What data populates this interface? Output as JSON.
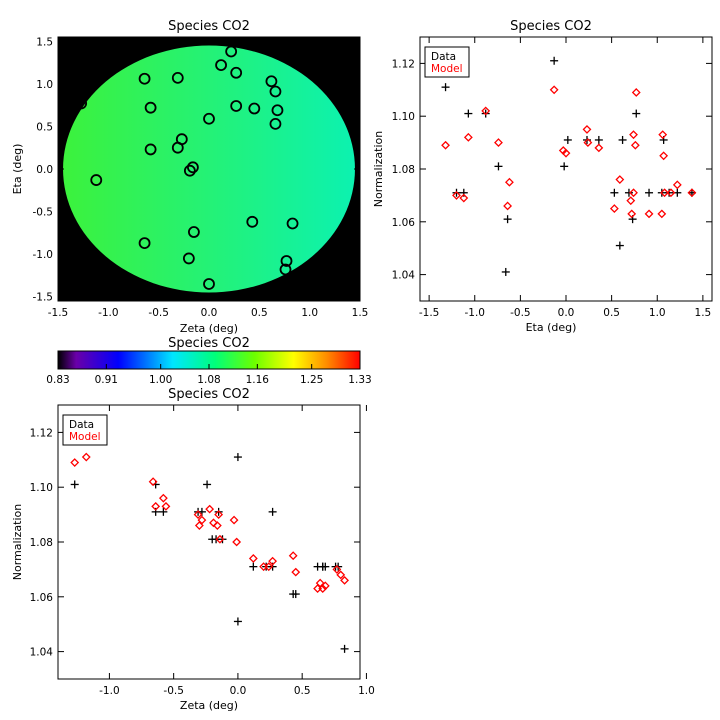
{
  "panels": {
    "map": {
      "title": "Species CO2",
      "xlabel": "Zeta (deg)",
      "ylabel": "Eta (deg)",
      "xticks": [
        "-1.5",
        "-1.0",
        "-0.5",
        "0.0",
        "0.5",
        "1.0",
        "1.5"
      ],
      "yticks": [
        "-1.5",
        "-1.0",
        "-0.5",
        "0.0",
        "0.5",
        "1.0",
        "1.5"
      ]
    },
    "eta": {
      "title": "Species CO2",
      "xlabel": "Eta (deg)",
      "ylabel": "Normalization",
      "xticks": [
        "-1.5",
        "-1.0",
        "-0.5",
        "0.0",
        "0.5",
        "1.0",
        "1.5"
      ],
      "yticks": [
        "1.04",
        "1.06",
        "1.08",
        "1.10",
        "1.12"
      ],
      "legend": {
        "data": "Data",
        "model": "Model"
      }
    },
    "colorbar": {
      "title": "Species CO2",
      "ticks": [
        "0.83",
        "0.91",
        "1.00",
        "1.08",
        "1.16",
        "1.25",
        "1.33"
      ]
    },
    "zeta": {
      "title": "Species CO2",
      "xlabel": "Zeta (deg)",
      "ylabel": "Normalization",
      "xticks": [
        "-1.0",
        "-0.5",
        "0.0",
        "0.5",
        "1.0"
      ],
      "yticks": [
        "1.04",
        "1.06",
        "1.08",
        "1.10",
        "1.12"
      ],
      "legend": {
        "data": "Data",
        "model": "Model"
      }
    }
  },
  "colors": {
    "data": "#000000",
    "model": "#ff0000",
    "map_background": "#000000",
    "disk_low": "#3cf23c",
    "disk_high": "#0cf2b0"
  },
  "chart_data": [
    {
      "type": "scatter",
      "title": "Species CO2",
      "xlabel": "Zeta (deg)",
      "ylabel": "Eta (deg)",
      "xlim": [
        -1.5,
        1.5
      ],
      "ylim": [
        -1.55,
        1.55
      ],
      "disk_radius": 1.45,
      "series": [
        {
          "points": [
            [
              -1.27,
              0.77
            ],
            [
              -1.12,
              -0.13
            ],
            [
              -0.64,
              1.06
            ],
            [
              -0.58,
              0.72
            ],
            [
              -0.58,
              0.23
            ],
            [
              -0.64,
              -0.87
            ],
            [
              -0.31,
              1.07
            ],
            [
              -0.31,
              0.25
            ],
            [
              -0.27,
              0.35
            ],
            [
              -0.19,
              -0.02
            ],
            [
              -0.16,
              0.02
            ],
            [
              -0.15,
              -0.74
            ],
            [
              -0.2,
              -1.05
            ],
            [
              0.0,
              0.59
            ],
            [
              0.0,
              -1.35
            ],
            [
              0.12,
              1.22
            ],
            [
              0.22,
              1.38
            ],
            [
              0.27,
              1.13
            ],
            [
              0.27,
              0.74
            ],
            [
              0.45,
              0.71
            ],
            [
              0.43,
              -0.62
            ],
            [
              0.62,
              1.03
            ],
            [
              0.66,
              0.91
            ],
            [
              0.68,
              0.69
            ],
            [
              0.66,
              0.53
            ],
            [
              0.77,
              -1.08
            ],
            [
              0.76,
              -1.18
            ],
            [
              0.83,
              -0.64
            ]
          ]
        }
      ]
    },
    {
      "type": "scatter",
      "title": "Species CO2",
      "xlabel": "Eta (deg)",
      "ylabel": "Normalization",
      "xlim": [
        -1.6,
        1.6
      ],
      "ylim": [
        1.03,
        1.13
      ],
      "series": [
        {
          "name": "Data",
          "points": [
            [
              -1.32,
              1.111
            ],
            [
              -1.2,
              1.071
            ],
            [
              -1.12,
              1.071
            ],
            [
              -1.07,
              1.101
            ],
            [
              -0.88,
              1.101
            ],
            [
              -0.74,
              1.081
            ],
            [
              -0.64,
              1.061
            ],
            [
              -0.66,
              1.041
            ],
            [
              -0.13,
              1.121
            ],
            [
              -0.02,
              1.081
            ],
            [
              0.02,
              1.091
            ],
            [
              0.23,
              1.091
            ],
            [
              0.36,
              1.091
            ],
            [
              0.53,
              1.071
            ],
            [
              0.59,
              1.051
            ],
            [
              0.62,
              1.091
            ],
            [
              0.69,
              1.071
            ],
            [
              0.73,
              1.061
            ],
            [
              0.77,
              1.101
            ],
            [
              0.91,
              1.071
            ],
            [
              1.05,
              1.071
            ],
            [
              1.07,
              1.091
            ],
            [
              1.13,
              1.071
            ],
            [
              1.22,
              1.071
            ],
            [
              1.38,
              1.071
            ]
          ]
        },
        {
          "name": "Model",
          "points": [
            [
              -1.32,
              1.089
            ],
            [
              -1.2,
              1.07
            ],
            [
              -1.12,
              1.069
            ],
            [
              -1.07,
              1.092
            ],
            [
              -0.88,
              1.102
            ],
            [
              -0.74,
              1.09
            ],
            [
              -0.64,
              1.066
            ],
            [
              -0.62,
              1.075
            ],
            [
              -0.13,
              1.11
            ],
            [
              -0.03,
              1.087
            ],
            [
              0.0,
              1.086
            ],
            [
              0.23,
              1.095
            ],
            [
              0.24,
              1.09
            ],
            [
              0.36,
              1.088
            ],
            [
              0.53,
              1.065
            ],
            [
              0.59,
              1.076
            ],
            [
              0.72,
              1.063
            ],
            [
              0.71,
              1.068
            ],
            [
              0.74,
              1.093
            ],
            [
              0.77,
              1.109
            ],
            [
              0.74,
              1.071
            ],
            [
              0.76,
              1.089
            ],
            [
              0.91,
              1.063
            ],
            [
              1.05,
              1.063
            ],
            [
              1.06,
              1.093
            ],
            [
              1.07,
              1.085
            ],
            [
              1.08,
              1.071
            ],
            [
              1.15,
              1.071
            ],
            [
              1.22,
              1.074
            ],
            [
              1.38,
              1.071
            ]
          ]
        }
      ]
    },
    {
      "type": "scatter",
      "title": "Species CO2",
      "xlabel": "Zeta (deg)",
      "ylabel": "Normalization",
      "xlim": [
        -1.4,
        0.95
      ],
      "ylim": [
        1.03,
        1.13
      ],
      "series": [
        {
          "name": "Data",
          "points": [
            [
              -1.27,
              1.101
            ],
            [
              -0.12,
              1.081
            ],
            [
              -0.64,
              1.101
            ],
            [
              -0.64,
              1.091
            ],
            [
              -0.58,
              1.091
            ],
            [
              -0.31,
              1.091
            ],
            [
              -0.28,
              1.091
            ],
            [
              -0.24,
              1.101
            ],
            [
              -0.2,
              1.081
            ],
            [
              -0.17,
              1.081
            ],
            [
              -0.15,
              1.091
            ],
            [
              0.0,
              1.111
            ],
            [
              0.0,
              1.051
            ],
            [
              0.12,
              1.071
            ],
            [
              0.22,
              1.071
            ],
            [
              0.27,
              1.071
            ],
            [
              0.27,
              1.091
            ],
            [
              0.43,
              1.061
            ],
            [
              0.45,
              1.061
            ],
            [
              0.62,
              1.071
            ],
            [
              0.66,
              1.071
            ],
            [
              0.68,
              1.071
            ],
            [
              0.66,
              1.071
            ],
            [
              0.76,
              1.071
            ],
            [
              0.78,
              1.071
            ],
            [
              0.83,
              1.041
            ]
          ]
        },
        {
          "name": "Model",
          "points": [
            [
              -1.27,
              1.109
            ],
            [
              -1.18,
              1.111
            ],
            [
              -0.66,
              1.102
            ],
            [
              -0.64,
              1.093
            ],
            [
              -0.58,
              1.096
            ],
            [
              -0.56,
              1.093
            ],
            [
              -0.31,
              1.09
            ],
            [
              -0.3,
              1.086
            ],
            [
              -0.28,
              1.088
            ],
            [
              -0.22,
              1.092
            ],
            [
              -0.19,
              1.087
            ],
            [
              -0.16,
              1.086
            ],
            [
              -0.15,
              1.09
            ],
            [
              -0.14,
              1.081
            ],
            [
              -0.03,
              1.088
            ],
            [
              -0.01,
              1.08
            ],
            [
              0.12,
              1.074
            ],
            [
              0.2,
              1.071
            ],
            [
              0.24,
              1.071
            ],
            [
              0.27,
              1.073
            ],
            [
              0.43,
              1.075
            ],
            [
              0.45,
              1.069
            ],
            [
              0.62,
              1.063
            ],
            [
              0.64,
              1.065
            ],
            [
              0.66,
              1.063
            ],
            [
              0.68,
              1.064
            ],
            [
              0.77,
              1.07
            ],
            [
              0.8,
              1.068
            ],
            [
              0.83,
              1.066
            ]
          ]
        }
      ]
    }
  ]
}
